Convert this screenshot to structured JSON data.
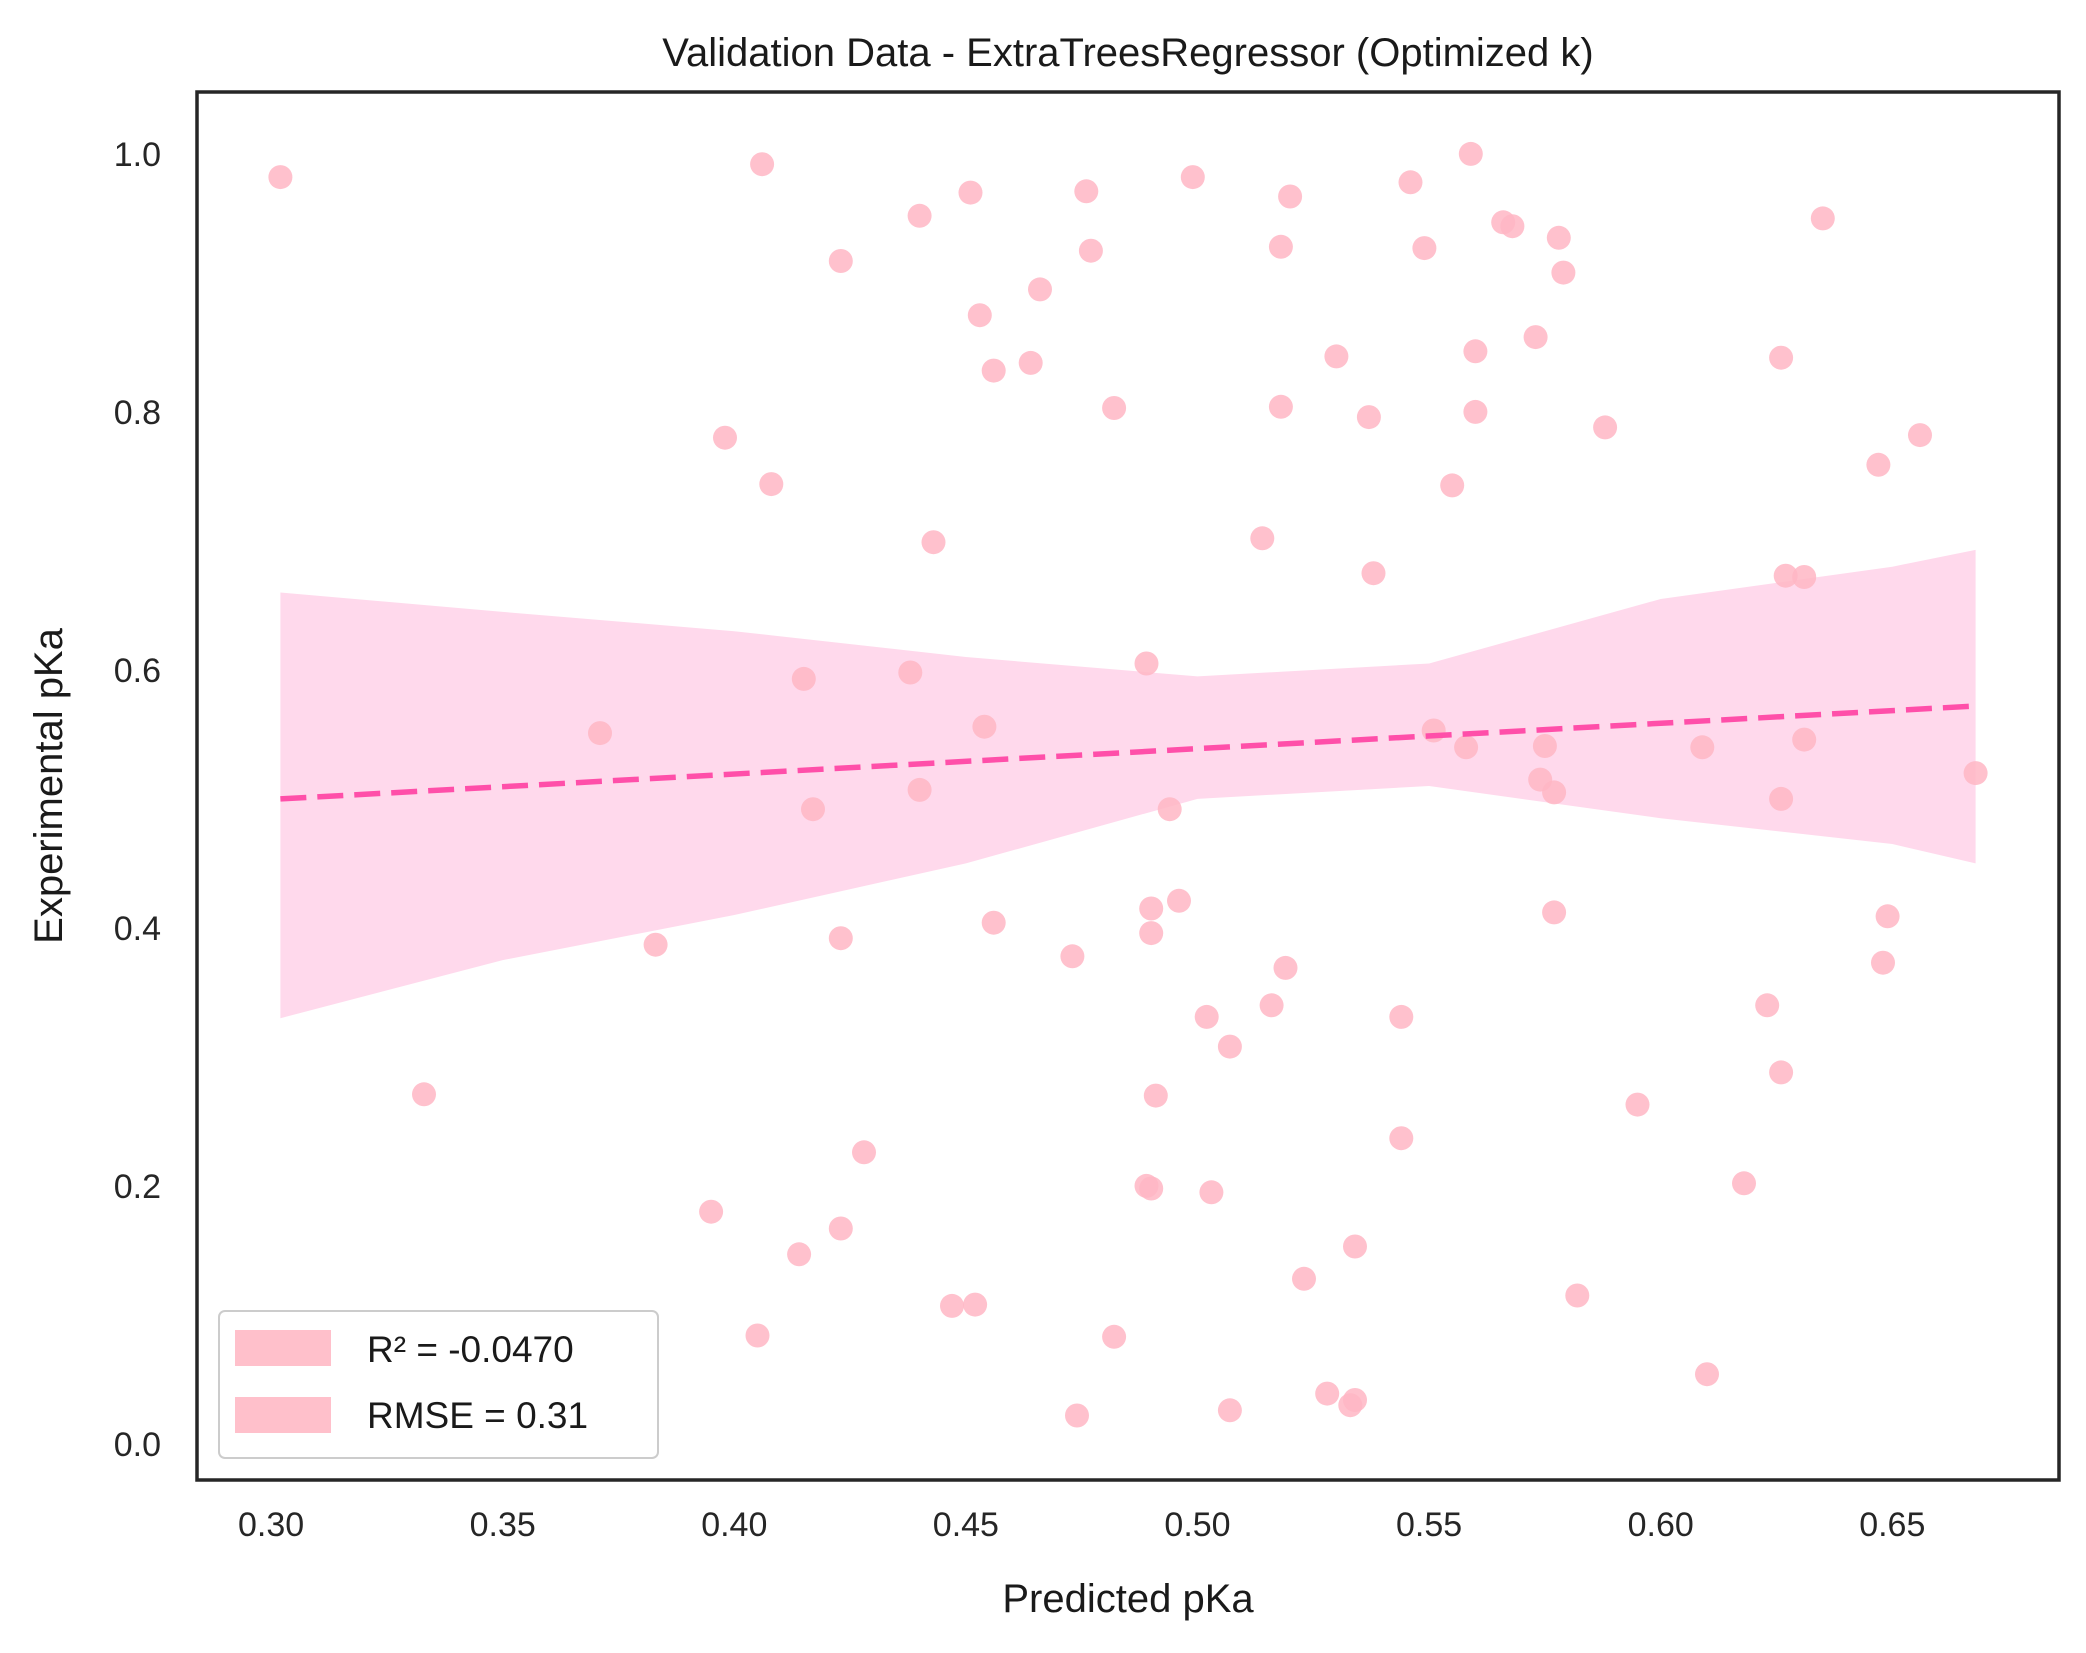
{
  "chart_data": {
    "type": "scatter",
    "title": "Validation Data - ExtraTreesRegressor (Optimized k)",
    "xlabel": "Predicted pKa",
    "ylabel": "Experimental pKa",
    "xlim": [
      0.284,
      0.686
    ],
    "ylim": [
      -0.028,
      1.048
    ],
    "xticks": [
      "0.30",
      "0.35",
      "0.40",
      "0.45",
      "0.50",
      "0.55",
      "0.60",
      "0.65"
    ],
    "yticks": [
      "0.0",
      "0.2",
      "0.4",
      "0.6",
      "0.8",
      "1.0"
    ],
    "grid": false,
    "legend_position": "lower-left",
    "legend": [
      "R² = -0.0470",
      "RMSE = 0.31"
    ],
    "colors": {
      "points": "#ffb6c4",
      "fit_line": "#ff4fa9",
      "confidence_band": "#ffd9ec",
      "legend_patch": "#ffc0cb"
    },
    "fit_line": {
      "style": "dashed",
      "x": [
        0.302,
        0.668
      ],
      "y": [
        0.5,
        0.572
      ]
    },
    "confidence_band": {
      "x": [
        0.302,
        0.35,
        0.4,
        0.45,
        0.5,
        0.55,
        0.6,
        0.65,
        0.668
      ],
      "upper": [
        0.66,
        0.645,
        0.63,
        0.61,
        0.595,
        0.605,
        0.655,
        0.68,
        0.693
      ],
      "lower": [
        0.33,
        0.375,
        0.41,
        0.45,
        0.5,
        0.51,
        0.485,
        0.465,
        0.45
      ]
    },
    "points": [
      {
        "x": 0.302,
        "y": 0.982
      },
      {
        "x": 0.406,
        "y": 0.992
      },
      {
        "x": 0.451,
        "y": 0.97
      },
      {
        "x": 0.476,
        "y": 0.971
      },
      {
        "x": 0.499,
        "y": 0.982
      },
      {
        "x": 0.546,
        "y": 0.978
      },
      {
        "x": 0.559,
        "y": 1.0
      },
      {
        "x": 0.44,
        "y": 0.952
      },
      {
        "x": 0.52,
        "y": 0.967
      },
      {
        "x": 0.566,
        "y": 0.947
      },
      {
        "x": 0.568,
        "y": 0.944
      },
      {
        "x": 0.635,
        "y": 0.95
      },
      {
        "x": 0.423,
        "y": 0.917
      },
      {
        "x": 0.477,
        "y": 0.925
      },
      {
        "x": 0.518,
        "y": 0.928
      },
      {
        "x": 0.549,
        "y": 0.927
      },
      {
        "x": 0.578,
        "y": 0.935
      },
      {
        "x": 0.579,
        "y": 0.908
      },
      {
        "x": 0.466,
        "y": 0.895
      },
      {
        "x": 0.453,
        "y": 0.875
      },
      {
        "x": 0.573,
        "y": 0.858
      },
      {
        "x": 0.56,
        "y": 0.847
      },
      {
        "x": 0.53,
        "y": 0.843
      },
      {
        "x": 0.626,
        "y": 0.842
      },
      {
        "x": 0.464,
        "y": 0.838
      },
      {
        "x": 0.456,
        "y": 0.832
      },
      {
        "x": 0.482,
        "y": 0.803
      },
      {
        "x": 0.518,
        "y": 0.804
      },
      {
        "x": 0.56,
        "y": 0.8
      },
      {
        "x": 0.537,
        "y": 0.796
      },
      {
        "x": 0.588,
        "y": 0.788
      },
      {
        "x": 0.398,
        "y": 0.78
      },
      {
        "x": 0.656,
        "y": 0.782
      },
      {
        "x": 0.647,
        "y": 0.759
      },
      {
        "x": 0.408,
        "y": 0.744
      },
      {
        "x": 0.555,
        "y": 0.743
      },
      {
        "x": 0.514,
        "y": 0.702
      },
      {
        "x": 0.443,
        "y": 0.699
      },
      {
        "x": 0.538,
        "y": 0.675
      },
      {
        "x": 0.627,
        "y": 0.673
      },
      {
        "x": 0.631,
        "y": 0.672
      },
      {
        "x": 0.489,
        "y": 0.605
      },
      {
        "x": 0.438,
        "y": 0.598
      },
      {
        "x": 0.415,
        "y": 0.593
      },
      {
        "x": 0.371,
        "y": 0.551
      },
      {
        "x": 0.454,
        "y": 0.556
      },
      {
        "x": 0.551,
        "y": 0.553
      },
      {
        "x": 0.631,
        "y": 0.546
      },
      {
        "x": 0.558,
        "y": 0.54
      },
      {
        "x": 0.575,
        "y": 0.541
      },
      {
        "x": 0.609,
        "y": 0.54
      },
      {
        "x": 0.668,
        "y": 0.52
      },
      {
        "x": 0.574,
        "y": 0.515
      },
      {
        "x": 0.44,
        "y": 0.507
      },
      {
        "x": 0.577,
        "y": 0.505
      },
      {
        "x": 0.626,
        "y": 0.5
      },
      {
        "x": 0.417,
        "y": 0.492
      },
      {
        "x": 0.494,
        "y": 0.492
      },
      {
        "x": 0.496,
        "y": 0.421
      },
      {
        "x": 0.49,
        "y": 0.415
      },
      {
        "x": 0.577,
        "y": 0.412
      },
      {
        "x": 0.649,
        "y": 0.409
      },
      {
        "x": 0.456,
        "y": 0.404
      },
      {
        "x": 0.49,
        "y": 0.396
      },
      {
        "x": 0.423,
        "y": 0.392
      },
      {
        "x": 0.383,
        "y": 0.387
      },
      {
        "x": 0.473,
        "y": 0.378
      },
      {
        "x": 0.648,
        "y": 0.373
      },
      {
        "x": 0.519,
        "y": 0.369
      },
      {
        "x": 0.516,
        "y": 0.34
      },
      {
        "x": 0.623,
        "y": 0.34
      },
      {
        "x": 0.502,
        "y": 0.331
      },
      {
        "x": 0.544,
        "y": 0.331
      },
      {
        "x": 0.507,
        "y": 0.308
      },
      {
        "x": 0.626,
        "y": 0.288
      },
      {
        "x": 0.333,
        "y": 0.271
      },
      {
        "x": 0.491,
        "y": 0.27
      },
      {
        "x": 0.595,
        "y": 0.263
      },
      {
        "x": 0.544,
        "y": 0.237
      },
      {
        "x": 0.428,
        "y": 0.226
      },
      {
        "x": 0.618,
        "y": 0.202
      },
      {
        "x": 0.489,
        "y": 0.2
      },
      {
        "x": 0.49,
        "y": 0.198
      },
      {
        "x": 0.503,
        "y": 0.195
      },
      {
        "x": 0.395,
        "y": 0.18
      },
      {
        "x": 0.423,
        "y": 0.167
      },
      {
        "x": 0.534,
        "y": 0.153
      },
      {
        "x": 0.414,
        "y": 0.147
      },
      {
        "x": 0.523,
        "y": 0.128
      },
      {
        "x": 0.582,
        "y": 0.115
      },
      {
        "x": 0.447,
        "y": 0.107
      },
      {
        "x": 0.452,
        "y": 0.108
      },
      {
        "x": 0.405,
        "y": 0.084
      },
      {
        "x": 0.482,
        "y": 0.083
      },
      {
        "x": 0.61,
        "y": 0.054
      },
      {
        "x": 0.528,
        "y": 0.039
      },
      {
        "x": 0.534,
        "y": 0.034
      },
      {
        "x": 0.533,
        "y": 0.03
      },
      {
        "x": 0.507,
        "y": 0.026
      },
      {
        "x": 0.474,
        "y": 0.022
      }
    ]
  }
}
